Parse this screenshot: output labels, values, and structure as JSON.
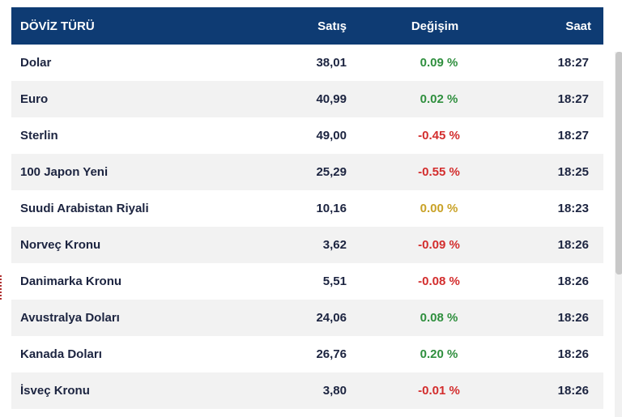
{
  "table": {
    "headers": {
      "name": "DÖVİZ TÜRÜ",
      "sell": "Satış",
      "change": "Değişim",
      "time": "Saat"
    },
    "rows": [
      {
        "name": "Dolar",
        "sell": "38,01",
        "change": "0.09 %",
        "trend": "up",
        "time": "18:27"
      },
      {
        "name": "Euro",
        "sell": "40,99",
        "change": "0.02 %",
        "trend": "up",
        "time": "18:27"
      },
      {
        "name": "Sterlin",
        "sell": "49,00",
        "change": "-0.45 %",
        "trend": "down",
        "time": "18:27"
      },
      {
        "name": "100 Japon Yeni",
        "sell": "25,29",
        "change": "-0.55 %",
        "trend": "down",
        "time": "18:25"
      },
      {
        "name": "Suudi Arabistan Riyali",
        "sell": "10,16",
        "change": "0.00 %",
        "trend": "flat",
        "time": "18:23"
      },
      {
        "name": "Norveç Kronu",
        "sell": "3,62",
        "change": "-0.09 %",
        "trend": "down",
        "time": "18:26"
      },
      {
        "name": "Danimarka Kronu",
        "sell": "5,51",
        "change": "-0.08 %",
        "trend": "down",
        "time": "18:26"
      },
      {
        "name": "Avustralya Doları",
        "sell": "24,06",
        "change": "0.08 %",
        "trend": "up",
        "time": "18:26"
      },
      {
        "name": "Kanada Doları",
        "sell": "26,76",
        "change": "0.20 %",
        "trend": "up",
        "time": "18:26"
      },
      {
        "name": "İsveç Kronu",
        "sell": "3,80",
        "change": "-0.01 %",
        "trend": "down",
        "time": "18:26"
      }
    ]
  },
  "colors": {
    "header_bg": "#0e3b73",
    "up": "#2f8f3e",
    "down": "#d32d2d",
    "flat": "#c9a227"
  }
}
